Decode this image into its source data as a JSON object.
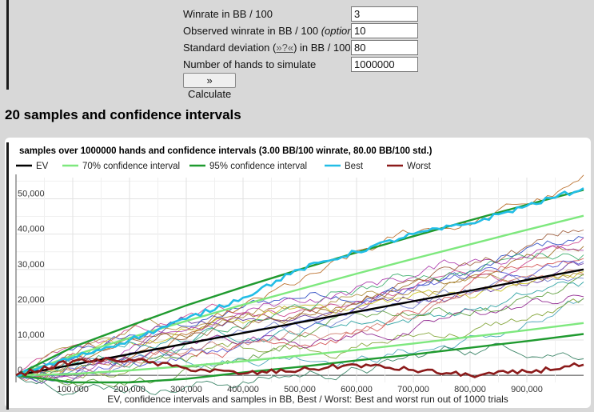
{
  "form": {
    "winrate_label": "Winrate in BB / 100",
    "winrate_value": "3",
    "observed_label": "Observed winrate in BB / 100",
    "observed_optional": "(optional)",
    "observed_value": "10",
    "stddev_label_pre": "Standard deviation (",
    "stddev_link": "»?«",
    "stddev_label_post": ") in BB / 100",
    "stddev_value": "80",
    "hands_label": "Number of hands to simulate",
    "hands_value": "1000000",
    "calculate_label": "» Calculate"
  },
  "section_title": "20 samples and confidence intervals",
  "chart_data": {
    "type": "line",
    "title": "samples over 1000000 hands and confidence intervals (3.00 BB/100 winrate, 80.00 BB/100 std.)",
    "xlabel": "EV, confidence intervals and samples in BB, Best / Worst: Best and worst run out of 1000 trials",
    "ylabel": "",
    "xlim": [
      0,
      1000000
    ],
    "ylim": [
      -2000,
      56000
    ],
    "x_ticks": [
      "100,000",
      "200,000",
      "300,000",
      "400,000",
      "500,000",
      "600,000",
      "700,000",
      "800,000",
      "900,000"
    ],
    "y_ticks": [
      "0",
      "10,000",
      "20,000",
      "30,000",
      "40,000",
      "50,000"
    ],
    "grid": true,
    "legend_position": "top",
    "legend": [
      {
        "name": "EV",
        "color": "#000000"
      },
      {
        "name": "70% confidence interval",
        "color": "#7ee87e"
      },
      {
        "name": "95% confidence interval",
        "color": "#1f9a2f"
      },
      {
        "name": "Best",
        "color": "#22bde6"
      },
      {
        "name": "Worst",
        "color": "#8b1a1a"
      }
    ],
    "series": [
      {
        "name": "EV",
        "x": [
          0,
          500000,
          1000000
        ],
        "values": [
          0,
          15000,
          30000
        ]
      },
      {
        "name": "70% confidence interval",
        "x": [
          0,
          100000,
          200000,
          300000,
          400000,
          500000,
          600000,
          700000,
          800000,
          900000,
          1000000
        ],
        "values_upper": [
          0,
          5600,
          10600,
          15400,
          20000,
          24400,
          28800,
          33000,
          37100,
          41200,
          45200
        ],
        "values_lower": [
          0,
          400,
          1400,
          2600,
          4000,
          5600,
          7200,
          9000,
          10900,
          12800,
          14800
        ]
      },
      {
        "name": "95% confidence interval",
        "x": [
          0,
          100000,
          200000,
          300000,
          400000,
          500000,
          600000,
          700000,
          800000,
          900000,
          1000000
        ],
        "values_upper": [
          0,
          8000,
          14000,
          19800,
          25000,
          30000,
          34800,
          39400,
          43900,
          48300,
          52500
        ],
        "values_lower": [
          0,
          -2000,
          -2000,
          -1000,
          800,
          2400,
          4200,
          5900,
          7800,
          9700,
          11700
        ]
      },
      {
        "name": "Best",
        "x": [
          0,
          100000,
          200000,
          300000,
          400000,
          500000,
          600000,
          700000,
          800000,
          900000,
          1000000
        ],
        "values": [
          0,
          5000,
          10000,
          16000,
          22000,
          30000,
          35000,
          40000,
          43000,
          48000,
          53000
        ]
      },
      {
        "name": "Worst",
        "x": [
          0,
          100000,
          200000,
          300000,
          400000,
          500000,
          600000,
          700000,
          800000,
          900000,
          1000000
        ],
        "values": [
          0,
          4000,
          4500,
          2000,
          500,
          1500,
          3000,
          1500,
          0,
          1000,
          3000
        ]
      }
    ]
  }
}
